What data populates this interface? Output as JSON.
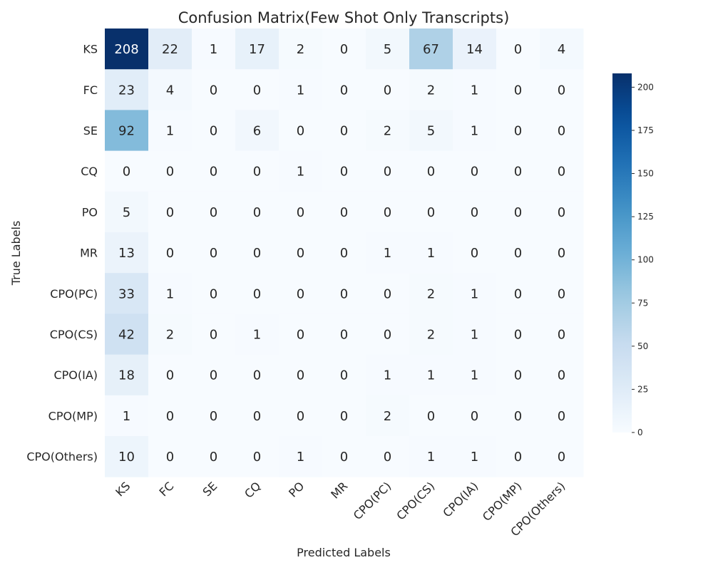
{
  "chart_data": {
    "type": "heatmap",
    "title": "Confusion Matrix(Few Shot Only Transcripts)",
    "xlabel": "Predicted Labels",
    "ylabel": "True Labels",
    "x_categories": [
      "KS",
      "FC",
      "SE",
      "CQ",
      "PO",
      "MR",
      "CPO(PC)",
      "CPO(CS)",
      "CPO(IA)",
      "CPO(MP)",
      "CPO(Others)"
    ],
    "y_categories": [
      "KS",
      "FC",
      "SE",
      "CQ",
      "PO",
      "MR",
      "CPO(PC)",
      "CPO(CS)",
      "CPO(IA)",
      "CPO(MP)",
      "CPO(Others)"
    ],
    "values": [
      [
        208,
        22,
        1,
        17,
        2,
        0,
        5,
        67,
        14,
        0,
        4
      ],
      [
        23,
        4,
        0,
        0,
        1,
        0,
        0,
        2,
        1,
        0,
        0
      ],
      [
        92,
        1,
        0,
        6,
        0,
        0,
        2,
        5,
        1,
        0,
        0
      ],
      [
        0,
        0,
        0,
        0,
        1,
        0,
        0,
        0,
        0,
        0,
        0
      ],
      [
        5,
        0,
        0,
        0,
        0,
        0,
        0,
        0,
        0,
        0,
        0
      ],
      [
        13,
        0,
        0,
        0,
        0,
        0,
        1,
        1,
        0,
        0,
        0
      ],
      [
        33,
        1,
        0,
        0,
        0,
        0,
        0,
        2,
        1,
        0,
        0
      ],
      [
        42,
        2,
        0,
        1,
        0,
        0,
        0,
        2,
        1,
        0,
        0
      ],
      [
        18,
        0,
        0,
        0,
        0,
        0,
        1,
        1,
        1,
        0,
        0
      ],
      [
        1,
        0,
        0,
        0,
        0,
        0,
        2,
        0,
        0,
        0,
        0
      ],
      [
        10,
        0,
        0,
        0,
        1,
        0,
        0,
        1,
        1,
        0,
        0
      ]
    ],
    "colormap": "Blues",
    "vmin": 0,
    "vmax": 208,
    "colorbar_ticks": [
      0,
      25,
      50,
      75,
      100,
      125,
      150,
      175,
      200
    ],
    "annotations": true,
    "grid": false,
    "colors": {
      "low": "#f7fbff",
      "high": "#08306b",
      "text_dark": "#262626",
      "text_light": "#ffffff"
    }
  }
}
